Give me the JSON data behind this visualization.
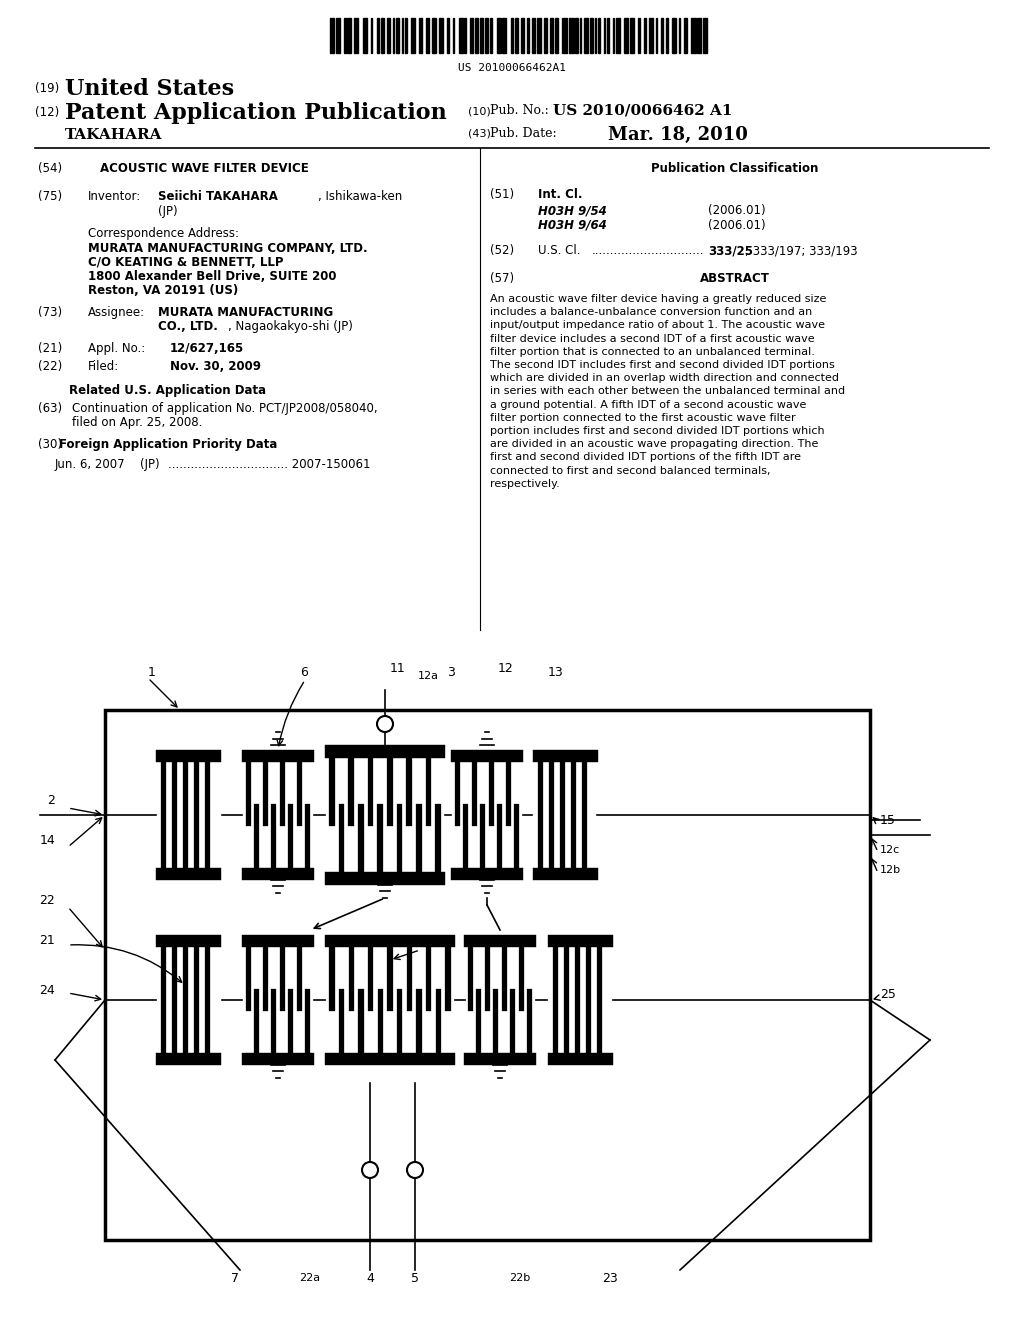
{
  "bg_color": "#ffffff",
  "barcode_text": "US 20100066462A1",
  "header": {
    "line1_num": "(19)",
    "line1_text": "United States",
    "line2_num": "(12)",
    "line2_text": "Patent Application Publication",
    "line2_right_label": "(10)",
    "line2_right_text": "Pub. No.:",
    "line2_right_val": "US 2010/0066462 A1",
    "line3_left": "TAKAHARA",
    "line3_right_label": "(43)",
    "line3_right_key": "Pub. Date:",
    "line3_right_val": "Mar. 18, 2010"
  },
  "pub_class_title": "Publication Classification",
  "int_cl_label": "Int. Cl.",
  "int_cl_items": [
    {
      "code": "H03H 9/54",
      "year": "(2006.01)"
    },
    {
      "code": "H03H 9/64",
      "year": "(2006.01)"
    }
  ],
  "us_cl_dots": "..............................",
  "us_cl_bold": "333/25",
  "us_cl_rest": "; 333/197; 333/193",
  "abstract_title": "ABSTRACT",
  "abstract_text": "An acoustic wave filter device having a greatly reduced size includes a balance-unbalance conversion function and an input/output impedance ratio of about 1. The acoustic wave filter device includes a second IDT of a first acoustic wave filter portion that is connected to an unbalanced terminal. The second IDT includes first and second divided IDT portions which are divided in an overlap width direction and connected in series with each other between the unbalanced terminal and a ground potential. A fifth IDT of a second acoustic wave filter portion connected to the first acoustic wave filter portion includes first and second divided IDT portions which are divided in an acoustic wave propagating direction. The first and second divided IDT portions of the fifth IDT are connected to first and second balanced terminals, respectively."
}
